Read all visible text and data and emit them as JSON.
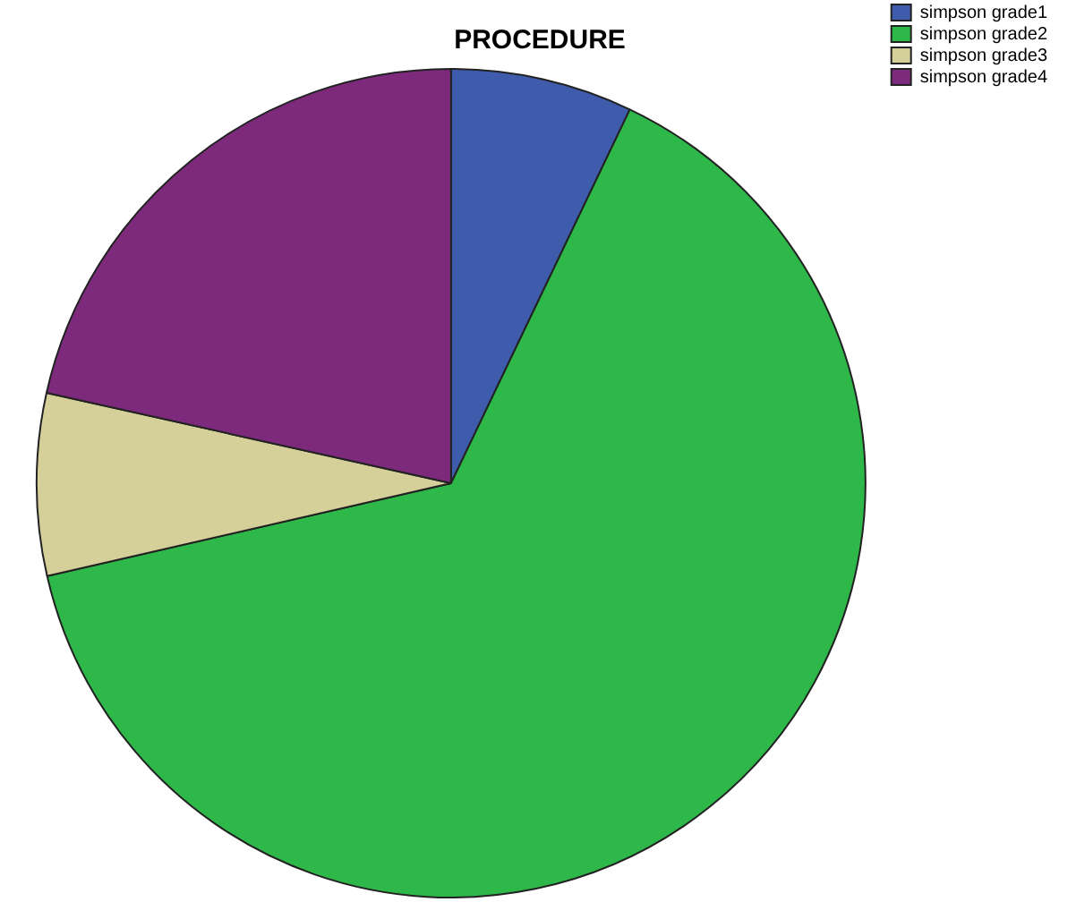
{
  "chart_data": {
    "type": "pie",
    "title": "PROCEDURE",
    "categories": [
      "simpson grade1",
      "simpson grade2",
      "simpson grade3",
      "simpson grade4"
    ],
    "values": [
      7.1,
      64.3,
      7.1,
      21.5
    ],
    "colors": [
      "#3f5bab",
      "#2eb84a",
      "#d5cf9a",
      "#7d2a7c"
    ],
    "legend": "top right"
  }
}
